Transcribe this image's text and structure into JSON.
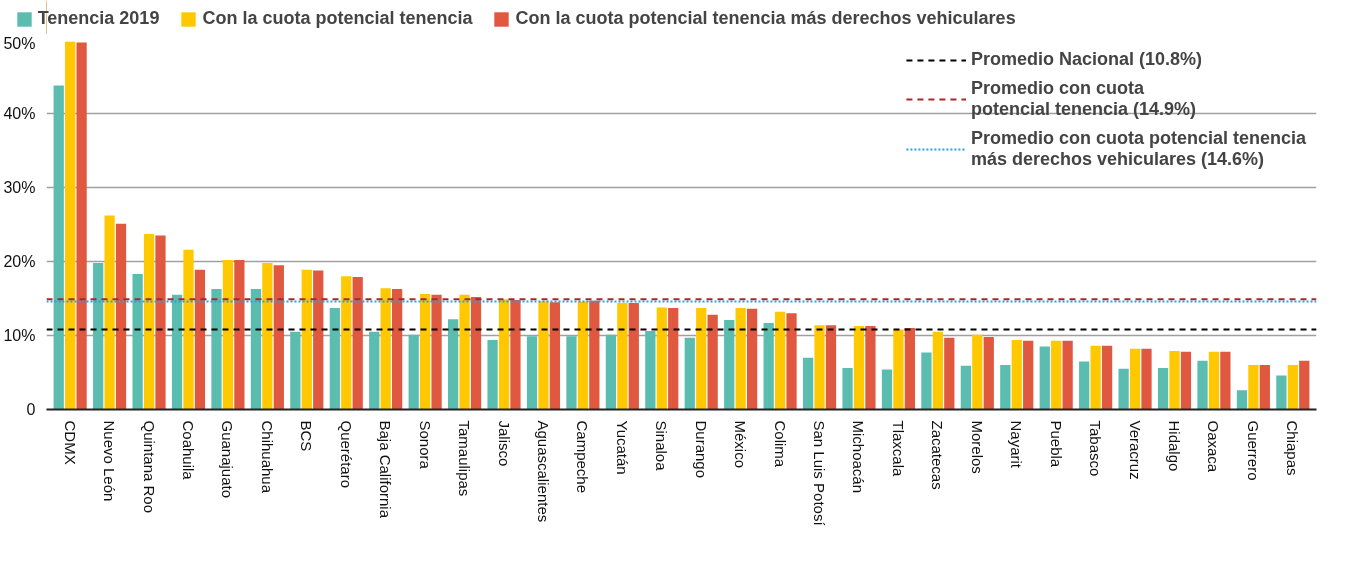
{
  "chart_data": {
    "type": "bar",
    "categories": [
      "CDMX",
      "Nuevo León",
      "Quintana Roo",
      "Coahuila",
      "Guanajuato",
      "Chihuahua",
      "BCS",
      "Querétaro",
      "Baja California",
      "Sonora",
      "Tamaulipas",
      "Jalisco",
      "Aguascalientes",
      "Campeche",
      "Yucatán",
      "Sinaloa",
      "Durango",
      "México",
      "Colima",
      "San Luis Potosí",
      "Michoacán",
      "Tlaxcala",
      "Zacatecas",
      "Morelos",
      "Nayarit",
      "Puebla",
      "Tabasco",
      "Veracruz",
      "Hidalgo",
      "Oaxaca",
      "Guerrero",
      "Chiapas"
    ],
    "series": [
      {
        "name": "Tenencia 2019",
        "color": "#5bbcb0",
        "values": [
          43.8,
          19.8,
          18.3,
          15.5,
          16.3,
          16.3,
          10.5,
          13.7,
          10.5,
          10.1,
          12.2,
          9.4,
          9.9,
          9.9,
          10.1,
          10.6,
          9.7,
          12.1,
          11.7,
          7.0,
          5.6,
          5.4,
          7.7,
          5.9,
          6.0,
          8.5,
          6.5,
          5.5,
          5.6,
          6.6,
          2.6,
          4.6
        ]
      },
      {
        "name": "Con la cuota potencial tenencia",
        "color": "#ffc800",
        "values": [
          49.7,
          26.2,
          23.7,
          21.6,
          20.2,
          19.8,
          18.9,
          18.0,
          16.4,
          15.6,
          15.5,
          14.9,
          14.6,
          14.6,
          14.4,
          13.8,
          13.7,
          13.7,
          13.2,
          11.4,
          11.3,
          10.8,
          10.5,
          10.1,
          9.4,
          9.3,
          8.6,
          8.2,
          7.9,
          7.8,
          6.0,
          6.0
        ]
      },
      {
        "name": "Con la cuota potencial tenencia más derechos vehiculares",
        "color": "#e05840",
        "values": [
          49.6,
          25.1,
          23.5,
          18.9,
          20.2,
          19.5,
          18.8,
          17.9,
          16.3,
          15.5,
          15.2,
          14.8,
          14.5,
          14.7,
          14.4,
          13.7,
          12.8,
          13.6,
          13.0,
          11.4,
          11.3,
          11.0,
          9.7,
          9.8,
          9.3,
          9.3,
          8.6,
          8.2,
          7.8,
          7.8,
          6.0,
          6.6
        ]
      }
    ],
    "ylim": [
      0,
      50
    ],
    "yticks": [
      0,
      {
        "value": 10,
        "label": "10%"
      },
      {
        "value": 20,
        "label": "20%"
      },
      {
        "value": 30,
        "label": "30%"
      },
      {
        "value": 40,
        "label": "40%"
      },
      {
        "value": 50,
        "label": "50%"
      }
    ],
    "grid": "y",
    "legend": "top left",
    "ref_lines": [
      {
        "axis": "y",
        "value": 10.8,
        "label": "Promedio Nacional (10.8%)",
        "color": "#000000",
        "line_style": "dashed"
      },
      {
        "axis": "y",
        "value": 14.9,
        "label": "Promedio con cuota\npotencial tenencia (14.9%)",
        "color": "#a82828",
        "line_style": "dashed"
      },
      {
        "axis": "y",
        "value": 14.6,
        "label": "Promedio con cuota potencial tenencia\nmás derechos vehiculares (14.6%)",
        "color": "#2a9fd8",
        "line_style": "dotted"
      }
    ]
  }
}
